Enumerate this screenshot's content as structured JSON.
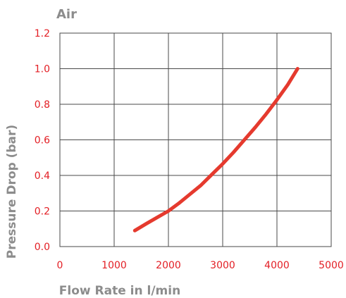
{
  "chart_data": {
    "type": "line",
    "title": "Air",
    "xlabel": "Flow Rate in l/min",
    "ylabel": "Pressure Drop (bar)",
    "xlim": [
      0,
      5000
    ],
    "ylim": [
      0,
      1.2
    ],
    "x_ticks": [
      0,
      1000,
      2000,
      3000,
      4000,
      5000
    ],
    "x_tick_labels": [
      "0",
      "1000",
      "2000",
      "3000",
      "4000",
      "5000"
    ],
    "y_ticks": [
      0,
      0.2,
      0.4,
      0.6,
      0.8,
      1.0,
      1.2
    ],
    "y_tick_labels": [
      "0.0",
      "0.2",
      "0.4",
      "0.6",
      "0.8",
      "1.0",
      "1.2"
    ],
    "grid": true,
    "legend": "none",
    "series": [
      {
        "x": [
          1380,
          1600,
          1800,
          2000,
          2200,
          2400,
          2600,
          2800,
          3000,
          3200,
          3400,
          3600,
          3800,
          4000,
          4200,
          4380
        ],
        "values": [
          0.09,
          0.13,
          0.165,
          0.2,
          0.245,
          0.295,
          0.345,
          0.405,
          0.465,
          0.53,
          0.6,
          0.67,
          0.745,
          0.825,
          0.91,
          1.0
        ]
      }
    ],
    "colors": {
      "series": "#e53a2e",
      "tick_labels": "#e31e24",
      "titles": "#8c8c8c",
      "grid": "#4a4a4a"
    }
  }
}
